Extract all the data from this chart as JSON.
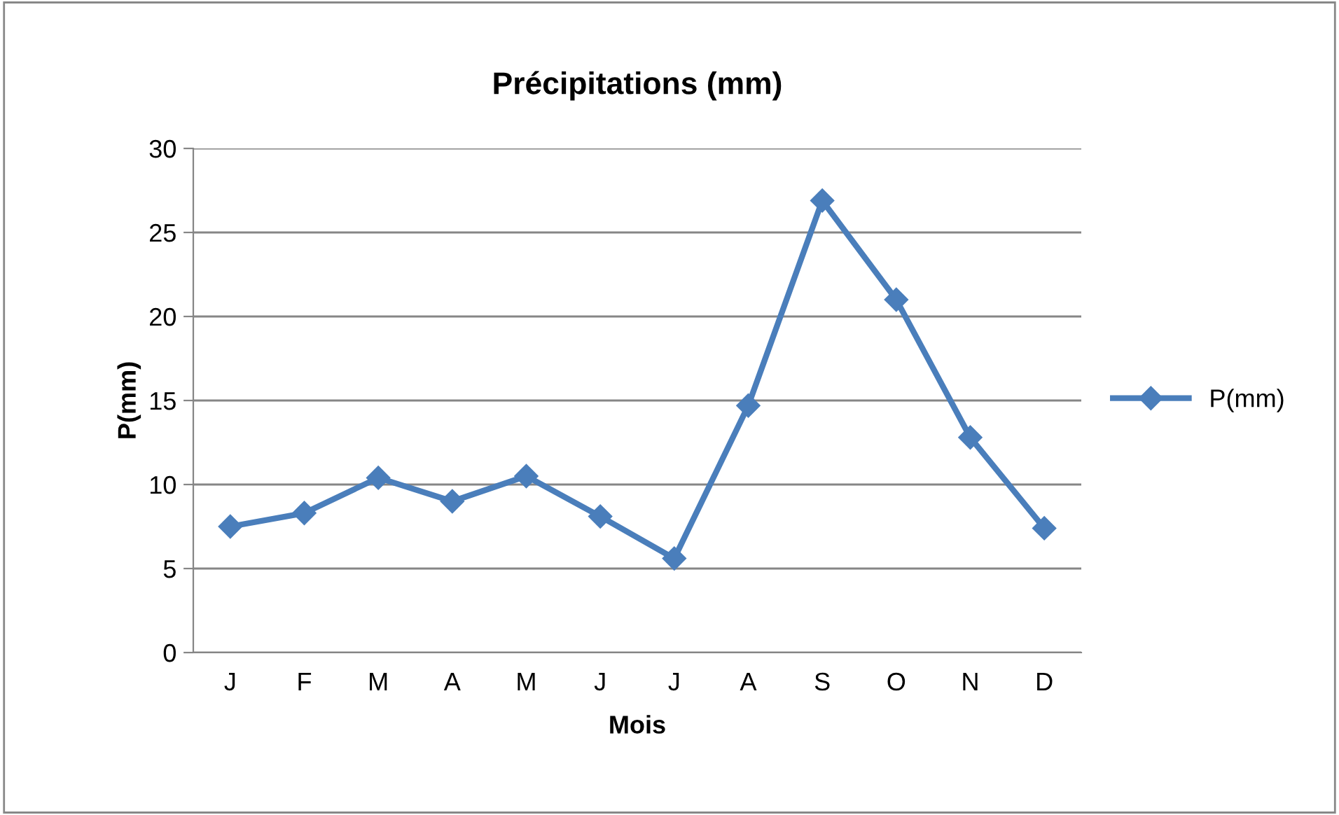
{
  "chart_data": {
    "type": "line",
    "title": "Précipitations (mm)",
    "xlabel": "Mois",
    "ylabel": "P(mm)",
    "categories": [
      "J",
      "F",
      "M",
      "A",
      "M",
      "J",
      "J",
      "A",
      "S",
      "O",
      "N",
      "D"
    ],
    "series": [
      {
        "name": "P(mm)",
        "color": "#4a7ebb",
        "values": [
          7.5,
          8.3,
          10.4,
          9.0,
          10.5,
          8.1,
          5.6,
          14.7,
          26.9,
          21.0,
          12.8,
          7.4
        ]
      }
    ],
    "ylim": [
      0,
      30
    ],
    "yticks": [
      0,
      5,
      10,
      15,
      20,
      25,
      30
    ],
    "grid": "y",
    "legend": "right",
    "marker": "diamond",
    "line_style": "solid"
  }
}
